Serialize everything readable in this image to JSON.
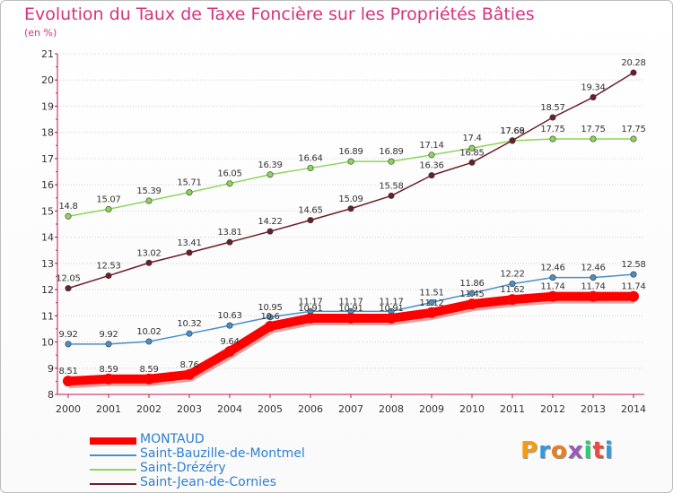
{
  "title": "Evolution du Taux de Taxe Foncière sur les Propriétés Bâties",
  "unit_label": "(en %)",
  "logo": {
    "letters": [
      "P",
      "r",
      "o",
      "x",
      "i",
      "t",
      "i"
    ],
    "colors": [
      "#f39c12",
      "#3498db",
      "#e67e22",
      "#9b59b6",
      "#2ecc71",
      "#e74c3c",
      "#3498db"
    ]
  },
  "chart_data": {
    "type": "line",
    "x": [
      "2000",
      "2001",
      "2002",
      "2003",
      "2004",
      "2005",
      "2006",
      "2007",
      "2008",
      "2009",
      "2010",
      "2011",
      "2012",
      "2013",
      "2014"
    ],
    "ylim": [
      8,
      21
    ],
    "yticks": [
      "8",
      "9",
      "10",
      "11",
      "12",
      "13",
      "14",
      "15",
      "16",
      "17",
      "18",
      "19",
      "20",
      "21"
    ],
    "grid": "horizontal-dotted",
    "legend_position": "bottom-left",
    "series": [
      {
        "name": "MONTAUD",
        "color": "#ff0000",
        "values": [
          8.51,
          8.59,
          8.59,
          8.76,
          9.64,
          10.6,
          10.91,
          10.91,
          10.91,
          11.12,
          11.45,
          11.62,
          11.74,
          11.74,
          11.74
        ],
        "labels": [
          "8.51",
          "8.59",
          "8.59",
          "8.76",
          "9.64",
          "10.6",
          "10.91",
          "10.91",
          "10.91",
          "11.12",
          "11.45",
          "11.62",
          "11.74",
          "11.74",
          "11.74"
        ]
      },
      {
        "name": "Saint-Bauzille-de-Montmel",
        "color": "#4a90c8",
        "values": [
          9.92,
          9.92,
          10.02,
          10.32,
          10.63,
          10.95,
          11.17,
          11.17,
          11.17,
          11.51,
          11.86,
          12.22,
          12.46,
          12.46,
          12.58
        ],
        "labels": [
          "9.92",
          "9.92",
          "10.02",
          "10.32",
          "10.63",
          "10.95",
          "11.17",
          "11.17",
          "11.17",
          "11.51",
          "11.86",
          "12.22",
          "12.46",
          "12.46",
          "12.58"
        ]
      },
      {
        "name": "Saint-Drézéry",
        "color": "#8dd65a",
        "values": [
          14.8,
          15.07,
          15.39,
          15.71,
          16.05,
          16.39,
          16.64,
          16.89,
          16.89,
          17.14,
          17.4,
          17.68,
          17.75,
          17.75,
          17.75
        ],
        "labels": [
          "14.8",
          "15.07",
          "15.39",
          "15.71",
          "16.05",
          "16.39",
          "16.64",
          "16.89",
          "16.89",
          "17.14",
          "17.4",
          "17.68",
          "17.75",
          "17.75",
          "17.75"
        ]
      },
      {
        "name": "Saint-Jean-de-Cornies",
        "color": "#6b1f2a",
        "values": [
          12.05,
          12.53,
          13.02,
          13.41,
          13.81,
          14.22,
          14.65,
          15.09,
          15.58,
          16.36,
          16.85,
          17.69,
          18.57,
          19.34,
          20.28
        ],
        "labels": [
          "12.05",
          "12.53",
          "13.02",
          "13.41",
          "13.81",
          "14.22",
          "14.65",
          "15.09",
          "15.58",
          "16.36",
          "16.85",
          "17.69",
          "18.57",
          "19.34",
          "20.28"
        ]
      }
    ]
  }
}
